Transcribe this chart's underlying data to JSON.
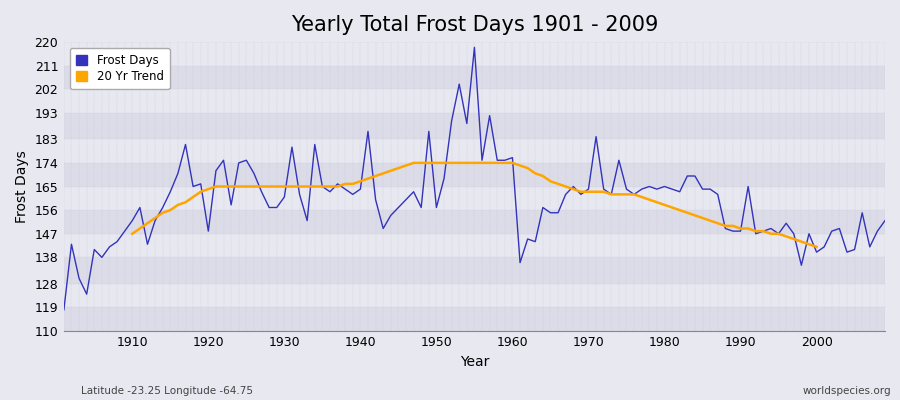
{
  "title": "Yearly Total Frost Days 1901 - 2009",
  "xlabel": "Year",
  "ylabel": "Frost Days",
  "footnote_left": "Latitude -23.25 Longitude -64.75",
  "footnote_right": "worldspecies.org",
  "ylim": [
    110,
    220
  ],
  "yticks": [
    110,
    119,
    128,
    138,
    147,
    156,
    165,
    174,
    183,
    193,
    202,
    211,
    220
  ],
  "years": [
    1901,
    1902,
    1903,
    1904,
    1905,
    1906,
    1907,
    1908,
    1909,
    1910,
    1911,
    1912,
    1913,
    1914,
    1915,
    1916,
    1917,
    1918,
    1919,
    1920,
    1921,
    1922,
    1923,
    1924,
    1925,
    1926,
    1927,
    1928,
    1929,
    1930,
    1931,
    1932,
    1933,
    1934,
    1935,
    1936,
    1937,
    1938,
    1939,
    1940,
    1941,
    1942,
    1943,
    1944,
    1945,
    1946,
    1947,
    1948,
    1949,
    1950,
    1951,
    1952,
    1953,
    1954,
    1955,
    1956,
    1957,
    1958,
    1959,
    1960,
    1961,
    1962,
    1963,
    1964,
    1965,
    1966,
    1967,
    1968,
    1969,
    1970,
    1971,
    1972,
    1973,
    1974,
    1975,
    1976,
    1977,
    1978,
    1979,
    1980,
    1981,
    1982,
    1983,
    1984,
    1985,
    1986,
    1987,
    1988,
    1989,
    1990,
    1991,
    1992,
    1993,
    1994,
    1995,
    1996,
    1997,
    1998,
    1999,
    2000,
    2001,
    2002,
    2003,
    2004,
    2005,
    2006,
    2007,
    2008,
    2009
  ],
  "frost_days": [
    118,
    143,
    130,
    124,
    141,
    138,
    142,
    144,
    148,
    152,
    157,
    143,
    152,
    157,
    163,
    170,
    181,
    165,
    166,
    148,
    171,
    175,
    158,
    174,
    175,
    170,
    163,
    157,
    157,
    161,
    180,
    162,
    152,
    181,
    165,
    163,
    166,
    164,
    162,
    164,
    186,
    160,
    149,
    154,
    157,
    160,
    163,
    157,
    186,
    157,
    168,
    190,
    204,
    189,
    218,
    175,
    192,
    175,
    175,
    176,
    136,
    145,
    144,
    157,
    155,
    155,
    162,
    165,
    162,
    164,
    184,
    164,
    162,
    175,
    164,
    162,
    164,
    165,
    164,
    165,
    164,
    163,
    169,
    169,
    164,
    164,
    162,
    149,
    148,
    148,
    165,
    147,
    148,
    149,
    147,
    151,
    147,
    135,
    147,
    140,
    142,
    148,
    149,
    140,
    141,
    155,
    142,
    148,
    152
  ],
  "trend_years": [
    1901,
    1902,
    1903,
    1904,
    1905,
    1906,
    1907,
    1908,
    1909,
    1910,
    1911,
    1912,
    1913,
    1914,
    1915,
    1916,
    1917,
    1918,
    1919,
    1920,
    1921,
    1922,
    1923,
    1924,
    1925,
    1926,
    1927,
    1928,
    1929,
    1930,
    1931,
    1932,
    1933,
    1934,
    1935,
    1936,
    1937,
    1938,
    1939,
    1940,
    1941,
    1942,
    1943,
    1944,
    1945,
    1946,
    1947,
    1948,
    1949,
    1950,
    1951,
    1952,
    1953,
    1954,
    1955,
    1956,
    1957,
    1958,
    1959,
    1960,
    1961,
    1962,
    1963,
    1964,
    1965,
    1966,
    1967,
    1968,
    1969,
    1970,
    1971,
    1972,
    1973,
    1974,
    1975,
    1976,
    1977,
    1978,
    1979,
    1980,
    1981,
    1982,
    1983,
    1984,
    1985,
    1986,
    1987,
    1988,
    1989,
    1990,
    1991,
    1992,
    1993,
    1994,
    1995,
    1996,
    1997,
    1998,
    1999,
    2000,
    2001,
    2002,
    2003,
    2004,
    2005,
    2006,
    2007,
    2008,
    2009
  ],
  "trend_values": [
    null,
    null,
    null,
    null,
    null,
    null,
    null,
    null,
    null,
    147,
    149,
    151,
    153,
    155,
    156,
    158,
    159,
    161,
    163,
    164,
    165,
    165,
    165,
    165,
    165,
    165,
    165,
    165,
    165,
    165,
    165,
    165,
    165,
    165,
    165,
    165,
    165,
    166,
    166,
    167,
    168,
    169,
    170,
    171,
    172,
    173,
    174,
    174,
    174,
    174,
    174,
    174,
    174,
    174,
    174,
    174,
    174,
    174,
    174,
    174,
    173,
    172,
    170,
    169,
    167,
    166,
    165,
    164,
    163,
    163,
    163,
    163,
    162,
    162,
    162,
    162,
    161,
    160,
    159,
    158,
    157,
    156,
    155,
    154,
    153,
    152,
    151,
    150,
    150,
    149,
    149,
    148,
    148,
    147,
    147,
    146,
    145,
    144,
    143,
    142,
    null,
    null,
    null,
    null,
    null,
    null,
    null,
    null,
    null
  ],
  "band_colors": [
    "#dcdce8",
    "#e8e8f0"
  ],
  "line_color": "#3333bb",
  "trend_color": "#FFA500",
  "bg_color": "#e8e8f0",
  "grid_color": "#ffffff",
  "title_fontsize": 15,
  "axis_fontsize": 9,
  "legend_fontsize": 8.5
}
